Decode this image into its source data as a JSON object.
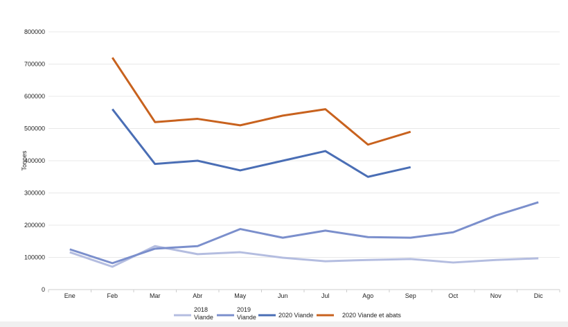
{
  "chart_data": {
    "type": "line",
    "title": "",
    "xlabel": "",
    "ylabel": "Tonnes",
    "ylim": [
      0,
      800000
    ],
    "yticks": [
      "0",
      "100000",
      "200000",
      "300000",
      "400000",
      "500000",
      "600000",
      "700000",
      "800000"
    ],
    "grid": true,
    "legend_position": "bottom",
    "categories": [
      "Ene",
      "Feb",
      "Mar",
      "Abr",
      "May",
      "Jun",
      "Jul",
      "Ago",
      "Sep",
      "Oct",
      "Nov",
      "Dic"
    ],
    "series": [
      {
        "name": "2018 Viande",
        "color": "#b4bde0",
        "values": [
          116000,
          71000,
          135000,
          110000,
          116000,
          99000,
          88000,
          92000,
          95000,
          84000,
          92000,
          97000
        ]
      },
      {
        "name": "2019 Viande",
        "color": "#7b8fcc",
        "values": [
          125000,
          82000,
          127000,
          135000,
          188000,
          161000,
          183000,
          163000,
          161000,
          178000,
          230000,
          271000
        ]
      },
      {
        "name": "2020 Viande",
        "color": "#4a6eb5",
        "values": [
          null,
          560000,
          390000,
          400000,
          370000,
          400000,
          430000,
          350000,
          380000,
          null,
          null,
          null
        ]
      },
      {
        "name": "2020 Viande et abats",
        "color": "#c8621e",
        "values": [
          null,
          720000,
          520000,
          530000,
          510000,
          540000,
          560000,
          450000,
          490000,
          null,
          null,
          null
        ]
      }
    ]
  }
}
